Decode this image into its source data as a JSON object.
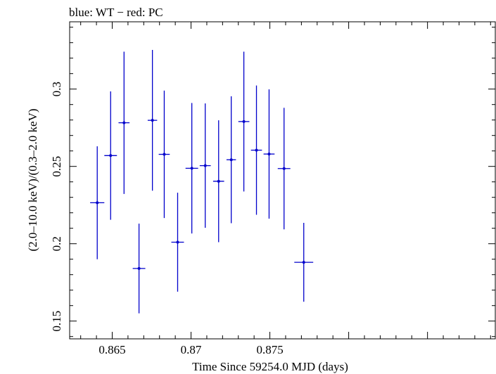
{
  "chart_data": {
    "type": "scatter",
    "title": "blue: WT − red: PC",
    "xlabel": "Time Since 59254.0 MJD (days)",
    "ylabel": "(2.0–10.0 keV)/(0.3–2.0 keV)",
    "xlim": [
      0.8623,
      0.8893
    ],
    "ylim": [
      0.1385,
      0.3435
    ],
    "x_ticks": [
      "0.865",
      "0.87",
      "0.875"
    ],
    "x_tick_values": [
      0.865,
      0.87,
      0.875
    ],
    "y_ticks": [
      "0.15",
      "0.2",
      "0.25",
      "0.3"
    ],
    "y_tick_values": [
      0.15,
      0.2,
      0.25,
      0.3
    ],
    "grid": false,
    "series": [
      {
        "color": "#0000cc",
        "points": [
          {
            "x": 0.86405,
            "xerr": 0.00045,
            "y": 0.2265,
            "yerr": 0.0365
          },
          {
            "x": 0.8649,
            "xerr": 0.0004,
            "y": 0.257,
            "yerr": 0.0415
          },
          {
            "x": 0.86575,
            "xerr": 0.00035,
            "y": 0.2782,
            "yerr": 0.046
          },
          {
            "x": 0.8667,
            "xerr": 0.0004,
            "y": 0.184,
            "yerr": 0.029
          },
          {
            "x": 0.86755,
            "xerr": 0.0003,
            "y": 0.2798,
            "yerr": 0.0455
          },
          {
            "x": 0.8683,
            "xerr": 0.00035,
            "y": 0.2578,
            "yerr": 0.0412
          },
          {
            "x": 0.86915,
            "xerr": 0.0004,
            "y": 0.201,
            "yerr": 0.032
          },
          {
            "x": 0.87005,
            "xerr": 0.0004,
            "y": 0.2488,
            "yerr": 0.0422
          },
          {
            "x": 0.8709,
            "xerr": 0.00035,
            "y": 0.2505,
            "yerr": 0.0402
          },
          {
            "x": 0.87175,
            "xerr": 0.00035,
            "y": 0.2404,
            "yerr": 0.0394
          },
          {
            "x": 0.87255,
            "xerr": 0.0003,
            "y": 0.2543,
            "yerr": 0.041
          },
          {
            "x": 0.87335,
            "xerr": 0.00035,
            "y": 0.279,
            "yerr": 0.0452
          },
          {
            "x": 0.87415,
            "xerr": 0.00035,
            "y": 0.2605,
            "yerr": 0.0418
          },
          {
            "x": 0.87495,
            "xerr": 0.00035,
            "y": 0.258,
            "yerr": 0.0418
          },
          {
            "x": 0.8759,
            "xerr": 0.0004,
            "y": 0.2486,
            "yerr": 0.0393
          },
          {
            "x": 0.87715,
            "xerr": 0.0006,
            "y": 0.188,
            "yerr": 0.0255
          }
        ]
      }
    ]
  }
}
